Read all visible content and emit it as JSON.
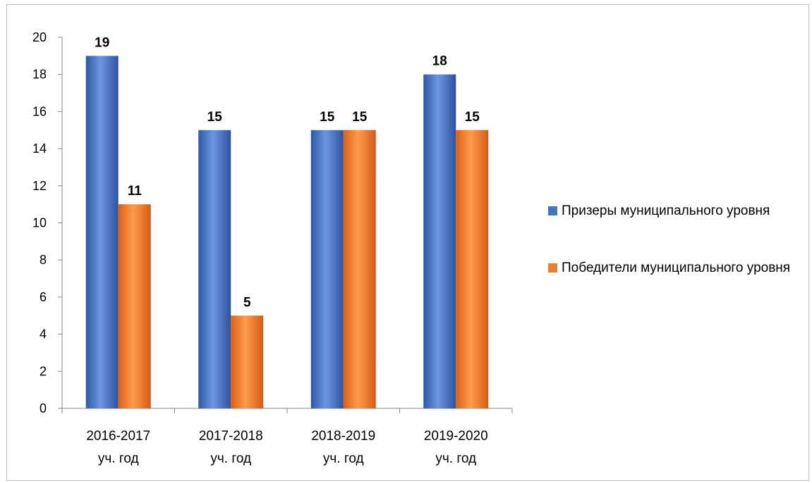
{
  "chart_data": {
    "type": "bar",
    "categories": [
      "2016-2017\nуч. год",
      "2017-2018\nуч. год",
      "2018-2019\nуч. год",
      "2019-2020\nуч. год"
    ],
    "series": [
      {
        "name": "Призеры муниципального уровня",
        "values": [
          19,
          15,
          15,
          18
        ],
        "color": "#4472c4"
      },
      {
        "name": "Победители муниципального уровня",
        "values": [
          11,
          5,
          15,
          15
        ],
        "color": "#ed7d31"
      }
    ],
    "ylim": [
      0,
      20
    ],
    "yticks": [
      0,
      2,
      4,
      6,
      8,
      10,
      12,
      14,
      16,
      18,
      20
    ],
    "grid": false,
    "legend": "right",
    "data_labels": true
  }
}
